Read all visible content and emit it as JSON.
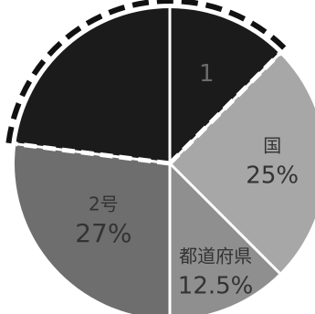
{
  "chart_data": {
    "type": "pie",
    "title": "",
    "slices": [
      {
        "label": "",
        "value": 12.5,
        "value_label": "",
        "color": "#1b1b1b",
        "highlighted": true,
        "partial_text": "1"
      },
      {
        "label": "国",
        "value": 25,
        "value_label": "25%",
        "color": "#a7a7a7",
        "highlighted": false
      },
      {
        "label": "都道府県",
        "value": 12.5,
        "value_label": "12.5%",
        "color": "#8f8f8f",
        "highlighted": false
      },
      {
        "label": "2号",
        "value": 27,
        "value_label": "27%",
        "color": "#6e6e6e",
        "highlighted": false
      },
      {
        "label": "",
        "value": 23,
        "value_label": "",
        "color": "#1b1b1b",
        "highlighted": true
      }
    ],
    "start_angle_deg": 0,
    "direction": "clockwise",
    "separator_color": "#ffffff",
    "highlight_outline": "dashed",
    "label_colors": {
      "light_slices": "#333333",
      "dark_slices": "#6a6a6a"
    }
  }
}
